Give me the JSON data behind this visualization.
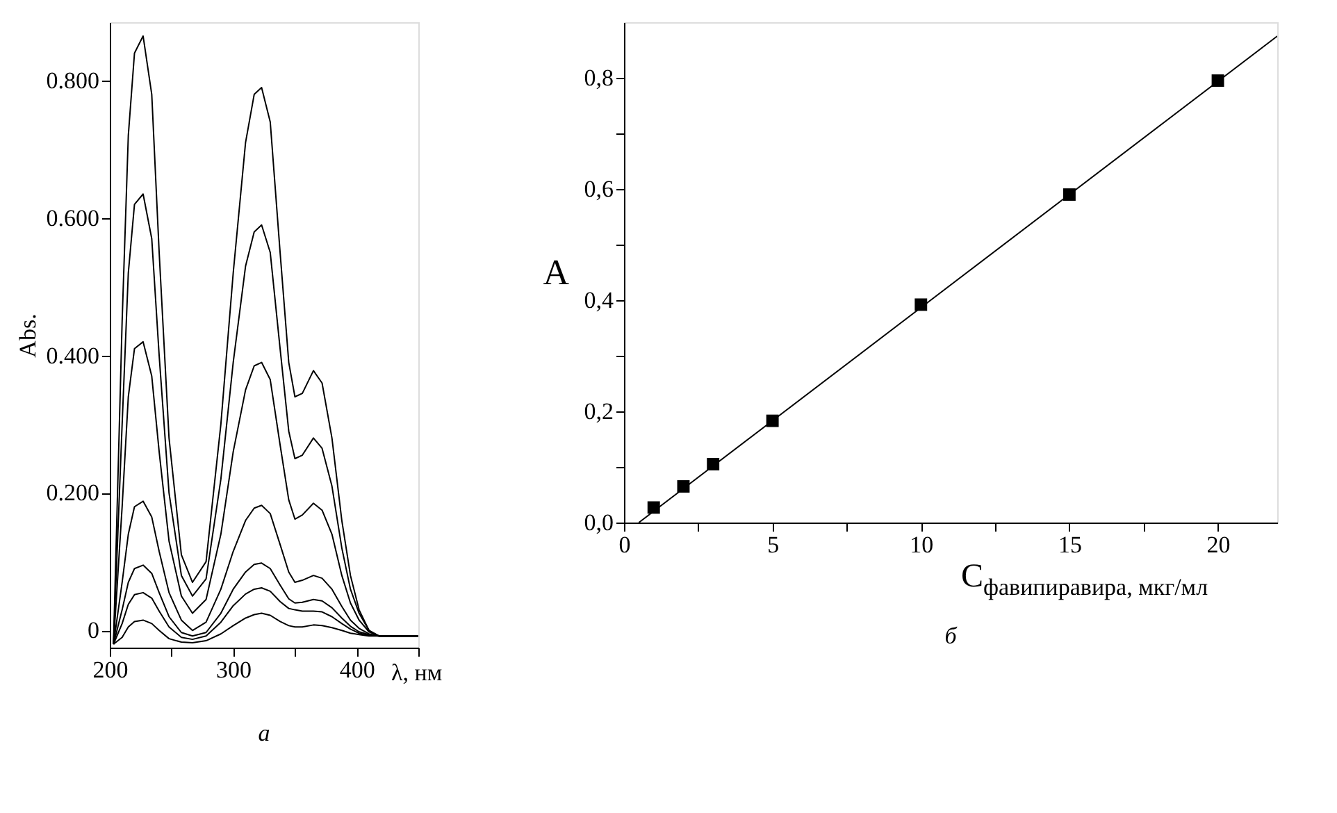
{
  "chart_data": [
    {
      "type": "line",
      "xlabel": "λ, нм",
      "ylabel": "Abs.",
      "annotations": [
        "а"
      ],
      "grid": false,
      "legend": false,
      "xlim": [
        200,
        450
      ],
      "ylim": [
        -0.025,
        0.885
      ],
      "xticks": [
        200,
        {
          "value": 250,
          "label": null
        },
        300,
        {
          "value": 350,
          "label": null
        },
        400,
        {
          "value": 450,
          "label": null
        }
      ],
      "yticks": [
        0,
        {
          "value": 0.2,
          "label": "0.200"
        },
        {
          "value": 0.4,
          "label": "0.400"
        },
        {
          "value": 0.6,
          "label": "0.600"
        },
        {
          "value": 0.8,
          "label": "0.800"
        }
      ],
      "x": [
        203,
        210,
        215,
        220,
        227,
        234,
        240,
        248,
        258,
        267,
        278,
        290,
        300,
        310,
        317,
        323,
        330,
        338,
        345,
        350,
        356,
        365,
        372,
        380,
        388,
        395,
        402,
        410,
        418,
        425,
        450
      ],
      "series": [
        {
          "color": "#000000",
          "values": [
            -0.02,
            0.45,
            0.72,
            0.84,
            0.865,
            0.78,
            0.55,
            0.28,
            0.11,
            0.07,
            0.1,
            0.3,
            0.52,
            0.71,
            0.78,
            0.79,
            0.74,
            0.55,
            0.39,
            0.34,
            0.345,
            0.378,
            0.36,
            0.28,
            0.16,
            0.08,
            0.03,
            0.0,
            -0.008,
            -0.008,
            -0.008
          ]
        },
        {
          "color": "#000000",
          "values": [
            -0.02,
            0.3,
            0.52,
            0.62,
            0.635,
            0.57,
            0.4,
            0.2,
            0.08,
            0.05,
            0.075,
            0.22,
            0.39,
            0.53,
            0.58,
            0.59,
            0.55,
            0.41,
            0.29,
            0.25,
            0.255,
            0.28,
            0.265,
            0.21,
            0.12,
            0.06,
            0.025,
            0.0,
            -0.008,
            -0.008,
            -0.008
          ]
        },
        {
          "color": "#000000",
          "values": [
            -0.02,
            0.18,
            0.34,
            0.41,
            0.42,
            0.37,
            0.26,
            0.13,
            0.05,
            0.025,
            0.045,
            0.14,
            0.26,
            0.35,
            0.385,
            0.39,
            0.365,
            0.27,
            0.19,
            0.162,
            0.168,
            0.185,
            0.175,
            0.14,
            0.08,
            0.04,
            0.015,
            -0.002,
            -0.008,
            -0.008,
            -0.008
          ]
        },
        {
          "color": "#000000",
          "values": [
            -0.02,
            0.07,
            0.14,
            0.18,
            0.188,
            0.165,
            0.115,
            0.055,
            0.015,
            0.0,
            0.012,
            0.06,
            0.115,
            0.16,
            0.178,
            0.182,
            0.17,
            0.125,
            0.085,
            0.07,
            0.073,
            0.08,
            0.076,
            0.06,
            0.035,
            0.015,
            0.003,
            -0.005,
            -0.008,
            -0.008,
            -0.008
          ]
        },
        {
          "color": "#000000",
          "values": [
            -0.02,
            0.03,
            0.07,
            0.09,
            0.095,
            0.083,
            0.055,
            0.02,
            -0.003,
            -0.008,
            -0.003,
            0.025,
            0.06,
            0.085,
            0.096,
            0.098,
            0.09,
            0.066,
            0.046,
            0.04,
            0.041,
            0.045,
            0.043,
            0.033,
            0.018,
            0.006,
            -0.002,
            -0.006,
            -0.008,
            -0.008,
            -0.008
          ]
        },
        {
          "color": "#000000",
          "values": [
            -0.02,
            0.01,
            0.038,
            0.052,
            0.055,
            0.047,
            0.028,
            0.005,
            -0.01,
            -0.013,
            -0.008,
            0.012,
            0.036,
            0.053,
            0.06,
            0.062,
            0.057,
            0.042,
            0.032,
            0.03,
            0.028,
            0.028,
            0.027,
            0.02,
            0.01,
            0.002,
            -0.004,
            -0.007,
            -0.008,
            -0.008,
            -0.008
          ]
        },
        {
          "color": "#000000",
          "values": [
            -0.02,
            -0.01,
            0.005,
            0.013,
            0.015,
            0.01,
            0.0,
            -0.012,
            -0.017,
            -0.018,
            -0.015,
            -0.005,
            0.007,
            0.018,
            0.023,
            0.025,
            0.022,
            0.013,
            0.007,
            0.005,
            0.005,
            0.008,
            0.007,
            0.004,
            0.0,
            -0.004,
            -0.006,
            -0.008,
            -0.008,
            -0.008,
            -0.008
          ]
        }
      ]
    },
    {
      "type": "scatter",
      "xlabel": "C$_{фавипиравира}$, мкг/мл",
      "ylabel": "A",
      "annotations": [
        "б"
      ],
      "grid": false,
      "legend": false,
      "xlim": [
        0,
        22
      ],
      "ylim": [
        0,
        0.9
      ],
      "xticks": [
        0,
        {
          "value": 2.5,
          "label": null
        },
        5,
        {
          "value": 7.5,
          "label": null
        },
        10,
        {
          "value": 12.5,
          "label": null
        },
        15,
        {
          "value": 17.5,
          "label": null
        },
        20
      ],
      "yticks": [
        {
          "value": 0,
          "label": "0,0"
        },
        {
          "value": 0.1,
          "label": null
        },
        {
          "value": 0.2,
          "label": "0,2"
        },
        {
          "value": 0.3,
          "label": null
        },
        {
          "value": 0.4,
          "label": "0,4"
        },
        {
          "value": 0.5,
          "label": null
        },
        {
          "value": 0.6,
          "label": "0,6"
        },
        {
          "value": 0.7,
          "label": null
        },
        {
          "value": 0.8,
          "label": "0,8"
        }
      ],
      "series": [
        {
          "type": "scatter",
          "marker": "square",
          "color": "#000000",
          "x": [
            1,
            2,
            3,
            5,
            10,
            15,
            20
          ],
          "values": [
            0.027,
            0.065,
            0.105,
            0.183,
            0.392,
            0.59,
            0.795
          ]
        },
        {
          "type": "line",
          "color": "#000000",
          "x": [
            0.5,
            22
          ],
          "values": [
            0,
            0.875
          ]
        }
      ]
    }
  ]
}
